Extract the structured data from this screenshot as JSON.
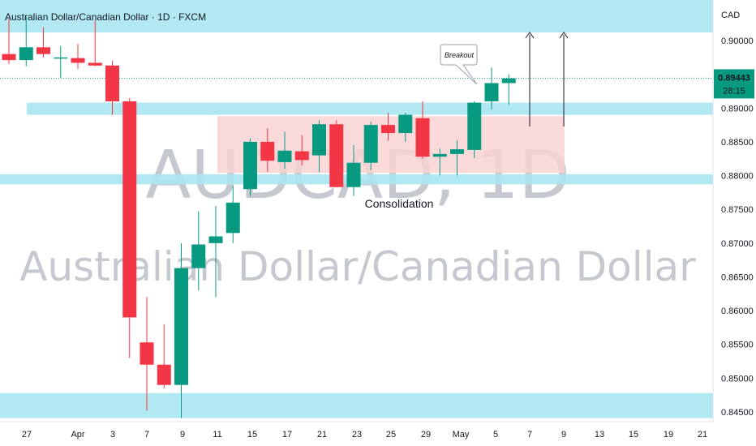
{
  "header": {
    "title": "Australian Dollar/Canadian Dollar · 1D · FXCM",
    "currency": "CAD"
  },
  "watermark": {
    "symbol": "AUDCAD, 1D",
    "name": "Australian Dollar/Canadian Dollar"
  },
  "price_label": {
    "price": "0.89443",
    "countdown": "28:15"
  },
  "colors": {
    "up": "#089981",
    "down": "#f23645",
    "zone": "#a8e6ef",
    "consolidation": "#f9d2d4",
    "price_tag": "#089981"
  },
  "chart_data": {
    "type": "candlestick",
    "title": "Australian Dollar/Canadian Dollar · 1D · FXCM",
    "ylabel": "CAD",
    "ylim": [
      0.8441,
      0.9083
    ],
    "y_ticks": [
      "0.90000",
      "0.89500",
      "0.89000",
      "0.88500",
      "0.88000",
      "0.87500",
      "0.87000",
      "0.86500",
      "0.86000",
      "0.85500",
      "0.85000",
      "0.84500"
    ],
    "x_ticks": [
      "27",
      "Apr",
      "3",
      "7",
      "9",
      "11",
      "15",
      "17",
      "21",
      "23",
      "25",
      "29",
      "May",
      "5",
      "7",
      "9",
      "13",
      "15",
      "19",
      "21"
    ],
    "candles": [
      {
        "o": 0.898,
        "h": 0.9032,
        "l": 0.8965,
        "c": 0.8971
      },
      {
        "o": 0.8971,
        "h": 0.9035,
        "l": 0.8962,
        "c": 0.899
      },
      {
        "o": 0.899,
        "h": 0.902,
        "l": 0.8975,
        "c": 0.898
      },
      {
        "o": 0.8975,
        "h": 0.8992,
        "l": 0.8945,
        "c": 0.8975
      },
      {
        "o": 0.8974,
        "h": 0.8995,
        "l": 0.8958,
        "c": 0.8967
      },
      {
        "o": 0.8967,
        "h": 0.903,
        "l": 0.8962,
        "c": 0.8963
      },
      {
        "o": 0.8963,
        "h": 0.897,
        "l": 0.889,
        "c": 0.891
      },
      {
        "o": 0.891,
        "h": 0.8915,
        "l": 0.853,
        "c": 0.859
      },
      {
        "o": 0.8553,
        "h": 0.862,
        "l": 0.8452,
        "c": 0.852
      },
      {
        "o": 0.852,
        "h": 0.858,
        "l": 0.8485,
        "c": 0.849
      },
      {
        "o": 0.849,
        "h": 0.87,
        "l": 0.8441,
        "c": 0.8663
      },
      {
        "o": 0.8663,
        "h": 0.8747,
        "l": 0.863,
        "c": 0.8698
      },
      {
        "o": 0.87,
        "h": 0.8755,
        "l": 0.862,
        "c": 0.871
      },
      {
        "o": 0.8715,
        "h": 0.8785,
        "l": 0.87,
        "c": 0.876
      },
      {
        "o": 0.878,
        "h": 0.8855,
        "l": 0.877,
        "c": 0.885
      },
      {
        "o": 0.885,
        "h": 0.887,
        "l": 0.8805,
        "c": 0.8822
      },
      {
        "o": 0.882,
        "h": 0.8865,
        "l": 0.881,
        "c": 0.8837
      },
      {
        "o": 0.8836,
        "h": 0.886,
        "l": 0.8815,
        "c": 0.8823
      },
      {
        "o": 0.883,
        "h": 0.8882,
        "l": 0.8805,
        "c": 0.8876
      },
      {
        "o": 0.8876,
        "h": 0.8882,
        "l": 0.8783,
        "c": 0.8783
      },
      {
        "o": 0.8783,
        "h": 0.8845,
        "l": 0.877,
        "c": 0.8819
      },
      {
        "o": 0.8819,
        "h": 0.888,
        "l": 0.8808,
        "c": 0.8875
      },
      {
        "o": 0.8875,
        "h": 0.8893,
        "l": 0.8852,
        "c": 0.8863
      },
      {
        "o": 0.8863,
        "h": 0.8893,
        "l": 0.885,
        "c": 0.889
      },
      {
        "o": 0.8885,
        "h": 0.891,
        "l": 0.8825,
        "c": 0.8828
      },
      {
        "o": 0.8828,
        "h": 0.884,
        "l": 0.88,
        "c": 0.8832
      },
      {
        "o": 0.8832,
        "h": 0.8852,
        "l": 0.88,
        "c": 0.8839
      },
      {
        "o": 0.8838,
        "h": 0.891,
        "l": 0.8826,
        "c": 0.8908
      },
      {
        "o": 0.891,
        "h": 0.896,
        "l": 0.8898,
        "c": 0.8937
      },
      {
        "o": 0.8937,
        "h": 0.895,
        "l": 0.8905,
        "c": 0.8944
      }
    ],
    "zones": [
      {
        "label": "",
        "from": 0.9012,
        "to": 0.9065
      },
      {
        "label": "",
        "from": 0.889,
        "to": 0.8908
      },
      {
        "label": "",
        "from": 0.8787,
        "to": 0.8802
      },
      {
        "label": "",
        "from": 0.8441,
        "to": 0.8478
      }
    ],
    "consolidation_box": {
      "label": "Consolidation",
      "from": 0.8804,
      "to": 0.8888
    },
    "breakout": {
      "label": "Breakout"
    },
    "last_price": 0.89443
  }
}
